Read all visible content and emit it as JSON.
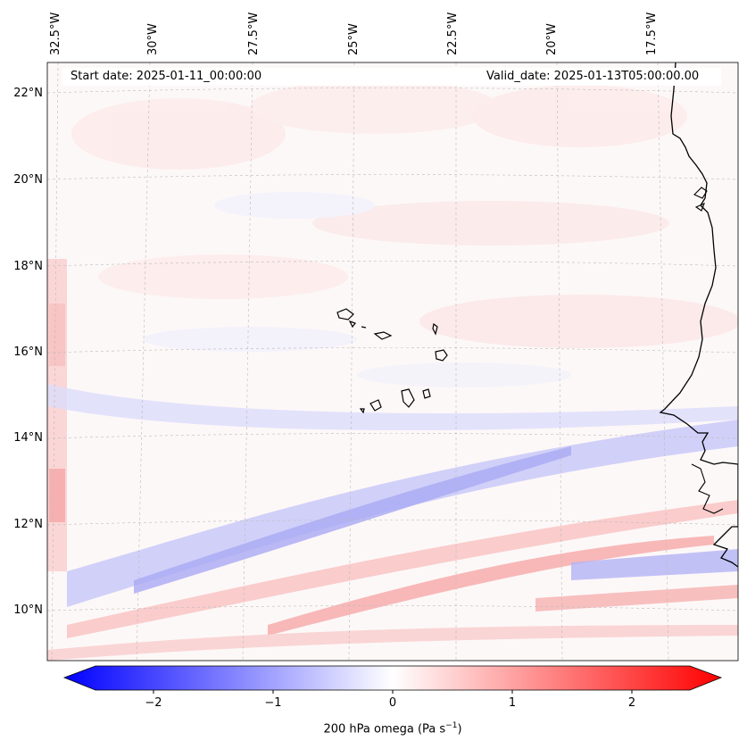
{
  "header": {
    "start_date": "Start date: 2025-01-11_00:00:00",
    "valid_date": "Valid_date: 2025-01-13T05:00:00.00"
  },
  "longitude_labels": [
    "32.5°W",
    "30°W",
    "27.5°W",
    "25°W",
    "22.5°W",
    "20°W",
    "17.5°W"
  ],
  "latitude_labels": [
    "22°N",
    "20°N",
    "18°N",
    "16°N",
    "14°N",
    "12°N",
    "10°N"
  ],
  "colorbar": {
    "ticks": [
      "−2",
      "−1",
      "0",
      "1",
      "2"
    ],
    "label": "200 hPa omega (Pa s",
    "label_unit_exp": "−1",
    "label_close": ")",
    "min_value": -2.5,
    "max_value": 2.5,
    "color_negative": "#0000ff",
    "color_zero": "#ffffff",
    "color_positive": "#ff0000"
  },
  "map": {
    "variable": "200 hPa omega",
    "units": "Pa s-1",
    "coastline_color": "#000000",
    "gridline_color": "#bbbbbb"
  }
}
